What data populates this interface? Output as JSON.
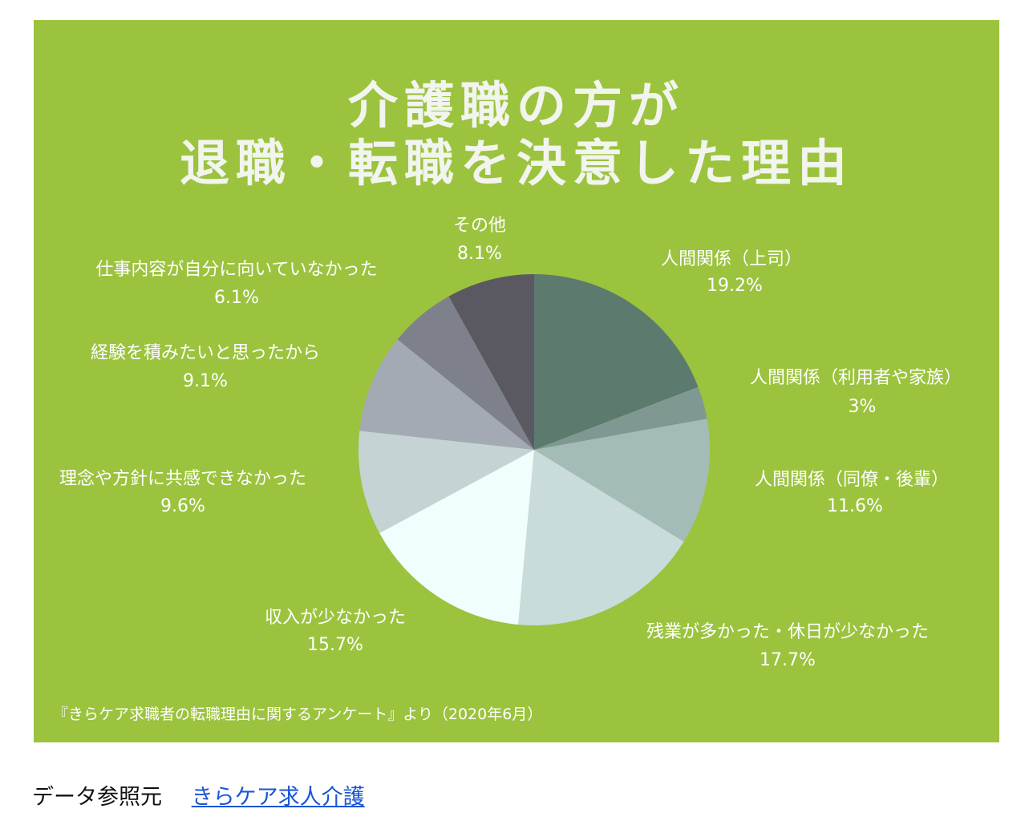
{
  "colors": {
    "background": "#9bc33e",
    "slices": [
      "#5c7a6e",
      "#7f9992",
      "#a3bcb7",
      "#c9dbda",
      "#f1fefe",
      "#c6d3d5",
      "#a3aab3",
      "#7e818c",
      "#5a5962"
    ]
  },
  "chart_data": {
    "type": "pie",
    "title": [
      "介護職の方が",
      "退職・転職を決意した理由"
    ],
    "slices": [
      {
        "label": "人間関係（上司）",
        "value": 19.2,
        "display": "19.2%"
      },
      {
        "label": "人間関係（利用者や家族）",
        "value": 3,
        "display": "3%"
      },
      {
        "label": "人間関係（同僚・後輩）",
        "value": 11.6,
        "display": "11.6%"
      },
      {
        "label": "残業が多かった・休日が少なかった",
        "value": 17.7,
        "display": "17.7%"
      },
      {
        "label": "収入が少なかった",
        "value": 15.7,
        "display": "15.7%"
      },
      {
        "label": "理念や方針に共感できなかった",
        "value": 9.6,
        "display": "9.6%"
      },
      {
        "label": "経験を積みたいと思ったから",
        "value": 9.1,
        "display": "9.1%"
      },
      {
        "label": "仕事内容が自分に向いていなかった",
        "value": 6.1,
        "display": "6.1%"
      },
      {
        "label": "その他",
        "value": 8.1,
        "display": "8.1%"
      }
    ],
    "source_note": "『きらケア求職者の転職理由に関するアンケート』より（2020年6月）"
  },
  "footer": {
    "label": "データ参照元",
    "link_text": "きらケア求人介護"
  }
}
